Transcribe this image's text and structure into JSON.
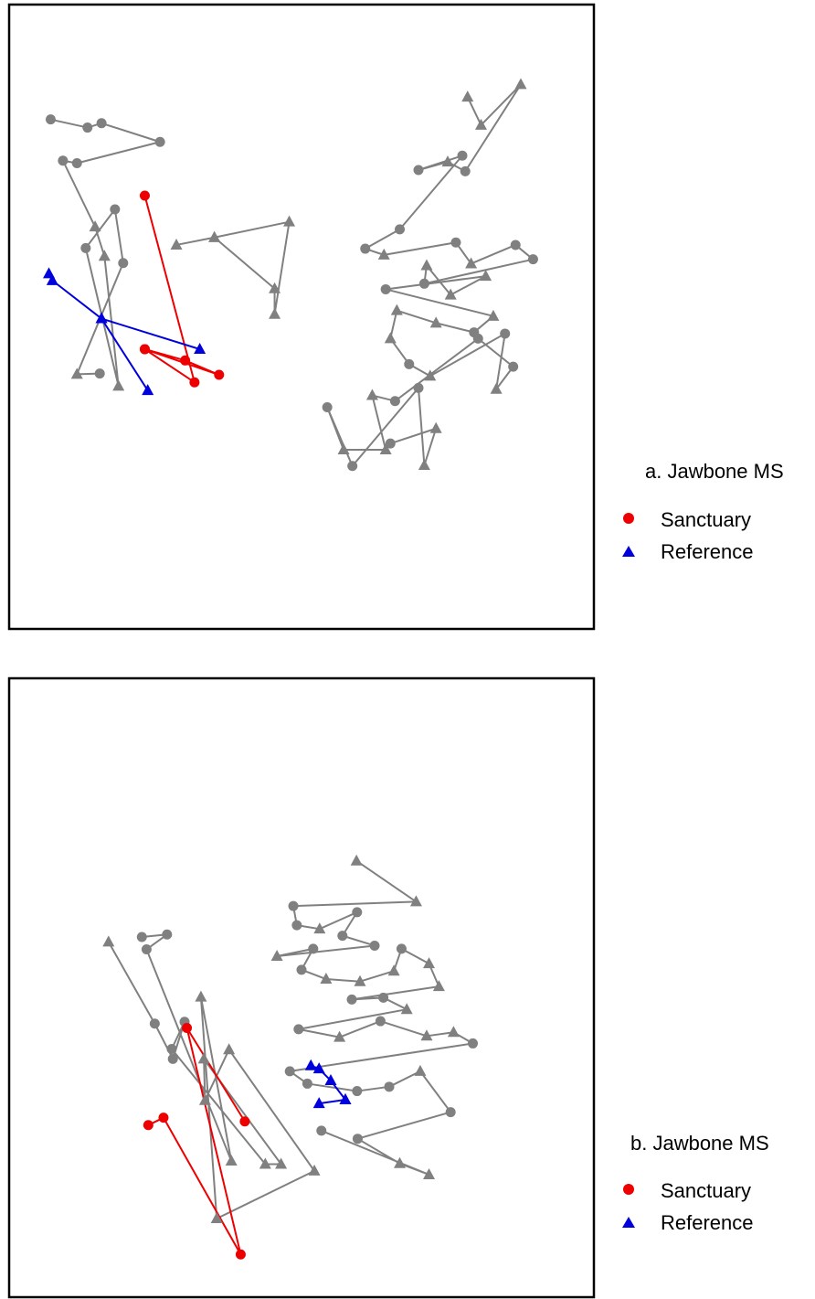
{
  "colors": {
    "other": "#808080",
    "sanctuary": "#ee0000",
    "reference": "#0000dd"
  },
  "legend_items": {
    "sanctuary": "Sanctuary",
    "reference": "Reference"
  },
  "chart_data": [
    {
      "type": "scatter",
      "title": "a. Jawbone MS",
      "xlim": [
        0,
        100
      ],
      "ylim": [
        0,
        100
      ],
      "grid": false,
      "axes": false,
      "legend": "right",
      "series": [
        {
          "name": "Sanctuary",
          "color": "#ee0000",
          "points": [
            {
              "x": 23.2,
              "y": 69.4,
              "m": "circle"
            },
            {
              "x": 31.7,
              "y": 39.5,
              "m": "circle"
            },
            {
              "x": 23.2,
              "y": 44.8,
              "m": "circle"
            },
            {
              "x": 35.9,
              "y": 40.7,
              "m": "circle"
            },
            {
              "x": 30.1,
              "y": 43.0,
              "m": "circle"
            },
            {
              "x": 23.2,
              "y": 44.8,
              "m": "circle"
            }
          ]
        },
        {
          "name": "Reference",
          "color": "#0000dd",
          "points": [
            {
              "x": 6.8,
              "y": 56.9,
              "m": "triangle"
            },
            {
              "x": 7.4,
              "y": 55.8,
              "m": "triangle"
            },
            {
              "x": 15.8,
              "y": 49.7,
              "m": "triangle"
            },
            {
              "x": 23.7,
              "y": 38.2,
              "m": "triangle"
            },
            {
              "x": 15.8,
              "y": 49.7,
              "m": "triangle"
            },
            {
              "x": 32.6,
              "y": 44.8,
              "m": "triangle"
            }
          ]
        },
        {
          "name": "",
          "color": "#808080",
          "points": [
            {
              "x": 7.1,
              "y": 81.6,
              "m": "circle"
            },
            {
              "x": 13.4,
              "y": 80.3,
              "m": "circle"
            },
            {
              "x": 15.8,
              "y": 81.0,
              "m": "circle"
            },
            {
              "x": 25.8,
              "y": 78.0,
              "m": "circle"
            },
            {
              "x": 11.6,
              "y": 74.6,
              "m": "circle"
            },
            {
              "x": 9.2,
              "y": 75.0,
              "m": "circle"
            },
            {
              "x": 14.7,
              "y": 64.4,
              "m": "triangle"
            },
            {
              "x": 16.3,
              "y": 59.7,
              "m": "triangle"
            },
            {
              "x": 18.7,
              "y": 38.9,
              "m": "triangle"
            },
            {
              "x": 13.1,
              "y": 61.0,
              "m": "circle"
            },
            {
              "x": 18.1,
              "y": 67.2,
              "m": "circle"
            },
            {
              "x": 19.5,
              "y": 58.6,
              "m": "circle"
            },
            {
              "x": 11.6,
              "y": 40.8,
              "m": "triangle"
            },
            {
              "x": 15.5,
              "y": 40.9,
              "m": "circle"
            }
          ]
        },
        {
          "name": "",
          "color": "#808080",
          "points": [
            {
              "x": 28.6,
              "y": 61.5,
              "m": "triangle"
            },
            {
              "x": 35.1,
              "y": 62.7,
              "m": "triangle"
            },
            {
              "x": 47.9,
              "y": 65.2,
              "m": "triangle"
            },
            {
              "x": 45.4,
              "y": 50.4,
              "m": "triangle"
            },
            {
              "x": 45.4,
              "y": 54.5,
              "m": "triangle"
            },
            {
              "x": 35.1,
              "y": 62.7,
              "m": "triangle"
            }
          ]
        },
        {
          "name": "",
          "color": "#808080",
          "points": [
            {
              "x": 78.4,
              "y": 85.2,
              "m": "triangle"
            },
            {
              "x": 80.7,
              "y": 80.7,
              "m": "triangle"
            },
            {
              "x": 87.5,
              "y": 87.2,
              "m": "triangle"
            },
            {
              "x": 78.0,
              "y": 73.3,
              "m": "circle"
            },
            {
              "x": 75.0,
              "y": 74.8,
              "m": "triangle"
            },
            {
              "x": 70.0,
              "y": 73.5,
              "m": "circle"
            },
            {
              "x": 77.5,
              "y": 75.8,
              "m": "circle"
            },
            {
              "x": 66.8,
              "y": 64.0,
              "m": "circle"
            },
            {
              "x": 60.9,
              "y": 60.9,
              "m": "circle"
            },
            {
              "x": 64.1,
              "y": 59.9,
              "m": "triangle"
            },
            {
              "x": 76.4,
              "y": 61.9,
              "m": "circle"
            },
            {
              "x": 79.0,
              "y": 58.5,
              "m": "triangle"
            },
            {
              "x": 86.6,
              "y": 61.5,
              "m": "circle"
            },
            {
              "x": 89.6,
              "y": 59.2,
              "m": "circle"
            },
            {
              "x": 71.0,
              "y": 55.3,
              "m": "circle"
            },
            {
              "x": 71.4,
              "y": 58.2,
              "m": "triangle"
            },
            {
              "x": 75.5,
              "y": 53.5,
              "m": "triangle"
            },
            {
              "x": 81.5,
              "y": 56.5,
              "m": "triangle"
            },
            {
              "x": 64.4,
              "y": 54.4,
              "m": "circle"
            },
            {
              "x": 82.8,
              "y": 50.1,
              "m": "triangle"
            },
            {
              "x": 79.5,
              "y": 47.5,
              "m": "circle"
            },
            {
              "x": 73.0,
              "y": 49.0,
              "m": "triangle"
            },
            {
              "x": 66.3,
              "y": 51.0,
              "m": "triangle"
            },
            {
              "x": 65.2,
              "y": 46.5,
              "m": "triangle"
            },
            {
              "x": 68.4,
              "y": 42.4,
              "m": "circle"
            },
            {
              "x": 72.0,
              "y": 40.5,
              "m": "triangle"
            },
            {
              "x": 84.8,
              "y": 47.3,
              "m": "circle"
            },
            {
              "x": 83.3,
              "y": 38.4,
              "m": "triangle"
            },
            {
              "x": 86.2,
              "y": 42.0,
              "m": "circle"
            },
            {
              "x": 80.2,
              "y": 46.5,
              "m": "circle"
            },
            {
              "x": 66.0,
              "y": 36.5,
              "m": "circle"
            },
            {
              "x": 62.1,
              "y": 37.4,
              "m": "triangle"
            },
            {
              "x": 64.4,
              "y": 28.7,
              "m": "triangle"
            },
            {
              "x": 57.2,
              "y": 28.7,
              "m": "triangle"
            },
            {
              "x": 54.4,
              "y": 35.5,
              "m": "circle"
            },
            {
              "x": 58.7,
              "y": 26.1,
              "m": "circle"
            },
            {
              "x": 70.0,
              "y": 38.6,
              "m": "circle"
            },
            {
              "x": 71.0,
              "y": 26.2,
              "m": "triangle"
            },
            {
              "x": 73.0,
              "y": 32.1,
              "m": "triangle"
            },
            {
              "x": 65.2,
              "y": 29.7,
              "m": "circle"
            }
          ]
        }
      ]
    },
    {
      "type": "scatter",
      "title": "b. Jawbone MS",
      "xlim": [
        0,
        100
      ],
      "ylim": [
        0,
        100
      ],
      "grid": false,
      "axes": false,
      "legend": "right",
      "series": [
        {
          "name": "Sanctuary",
          "color": "#ee0000",
          "points": [
            {
              "x": 23.8,
              "y": 27.8,
              "m": "circle"
            },
            {
              "x": 26.4,
              "y": 29.0,
              "m": "circle"
            },
            {
              "x": 39.6,
              "y": 6.9,
              "m": "circle"
            },
            {
              "x": 30.4,
              "y": 43.5,
              "m": "circle"
            },
            {
              "x": 40.3,
              "y": 28.4,
              "m": "circle"
            }
          ]
        },
        {
          "name": "Reference",
          "color": "#0000dd",
          "points": [
            {
              "x": 51.6,
              "y": 37.4,
              "m": "triangle"
            },
            {
              "x": 53.0,
              "y": 36.9,
              "m": "triangle"
            },
            {
              "x": 55.0,
              "y": 35.0,
              "m": "triangle"
            },
            {
              "x": 57.5,
              "y": 31.9,
              "m": "triangle"
            },
            {
              "x": 53.0,
              "y": 31.3,
              "m": "triangle"
            },
            {
              "x": 57.5,
              "y": 31.9,
              "m": "triangle"
            }
          ]
        },
        {
          "name": "",
          "color": "#808080",
          "points": [
            {
              "x": 17.0,
              "y": 57.4,
              "m": "triangle"
            },
            {
              "x": 24.9,
              "y": 44.2,
              "m": "circle"
            },
            {
              "x": 28.0,
              "y": 38.5,
              "m": "circle"
            },
            {
              "x": 30.0,
              "y": 44.5,
              "m": "circle"
            },
            {
              "x": 27.8,
              "y": 40.1,
              "m": "circle"
            },
            {
              "x": 43.8,
              "y": 21.5,
              "m": "triangle"
            },
            {
              "x": 46.5,
              "y": 21.5,
              "m": "triangle"
            },
            {
              "x": 33.3,
              "y": 38.5,
              "m": "triangle"
            },
            {
              "x": 33.5,
              "y": 31.8,
              "m": "triangle"
            },
            {
              "x": 37.6,
              "y": 40.0,
              "m": "triangle"
            },
            {
              "x": 52.2,
              "y": 20.4,
              "m": "triangle"
            },
            {
              "x": 35.5,
              "y": 12.7,
              "m": "triangle"
            },
            {
              "x": 32.8,
              "y": 48.5,
              "m": "triangle"
            },
            {
              "x": 38.0,
              "y": 22.0,
              "m": "triangle"
            },
            {
              "x": 23.5,
              "y": 56.2,
              "m": "circle"
            },
            {
              "x": 27.0,
              "y": 58.6,
              "m": "circle"
            },
            {
              "x": 22.7,
              "y": 58.2,
              "m": "circle"
            }
          ]
        },
        {
          "name": "",
          "color": "#808080",
          "points": [
            {
              "x": 59.4,
              "y": 70.5,
              "m": "triangle"
            },
            {
              "x": 69.6,
              "y": 63.9,
              "m": "triangle"
            },
            {
              "x": 48.6,
              "y": 63.2,
              "m": "circle"
            },
            {
              "x": 49.2,
              "y": 60.1,
              "m": "circle"
            },
            {
              "x": 53.1,
              "y": 59.5,
              "m": "triangle"
            },
            {
              "x": 59.5,
              "y": 62.2,
              "m": "circle"
            },
            {
              "x": 57.0,
              "y": 58.4,
              "m": "circle"
            },
            {
              "x": 62.5,
              "y": 56.8,
              "m": "circle"
            },
            {
              "x": 45.8,
              "y": 55.1,
              "m": "triangle"
            },
            {
              "x": 52.0,
              "y": 56.3,
              "m": "circle"
            },
            {
              "x": 50.0,
              "y": 52.9,
              "m": "circle"
            },
            {
              "x": 54.2,
              "y": 51.4,
              "m": "triangle"
            },
            {
              "x": 60.0,
              "y": 51.0,
              "m": "triangle"
            },
            {
              "x": 65.8,
              "y": 52.7,
              "m": "triangle"
            },
            {
              "x": 67.1,
              "y": 56.3,
              "m": "circle"
            },
            {
              "x": 71.8,
              "y": 53.9,
              "m": "triangle"
            },
            {
              "x": 73.5,
              "y": 50.2,
              "m": "triangle"
            },
            {
              "x": 58.6,
              "y": 48.1,
              "m": "circle"
            },
            {
              "x": 64.0,
              "y": 48.4,
              "m": "circle"
            },
            {
              "x": 68.0,
              "y": 46.5,
              "m": "triangle"
            },
            {
              "x": 49.5,
              "y": 43.3,
              "m": "circle"
            },
            {
              "x": 56.5,
              "y": 42.0,
              "m": "triangle"
            },
            {
              "x": 63.5,
              "y": 44.6,
              "m": "circle"
            },
            {
              "x": 71.4,
              "y": 42.2,
              "m": "triangle"
            },
            {
              "x": 76.0,
              "y": 42.8,
              "m": "triangle"
            },
            {
              "x": 79.3,
              "y": 41.0,
              "m": "circle"
            },
            {
              "x": 48.0,
              "y": 36.5,
              "m": "circle"
            },
            {
              "x": 51.0,
              "y": 34.5,
              "m": "circle"
            },
            {
              "x": 59.5,
              "y": 33.3,
              "m": "circle"
            },
            {
              "x": 65.0,
              "y": 34.0,
              "m": "circle"
            },
            {
              "x": 70.3,
              "y": 36.5,
              "m": "triangle"
            },
            {
              "x": 75.5,
              "y": 29.9,
              "m": "circle"
            },
            {
              "x": 59.6,
              "y": 25.6,
              "m": "circle"
            },
            {
              "x": 66.8,
              "y": 21.6,
              "m": "triangle"
            },
            {
              "x": 71.8,
              "y": 19.8,
              "m": "triangle"
            },
            {
              "x": 53.4,
              "y": 26.9,
              "m": "circle"
            }
          ]
        }
      ]
    }
  ]
}
